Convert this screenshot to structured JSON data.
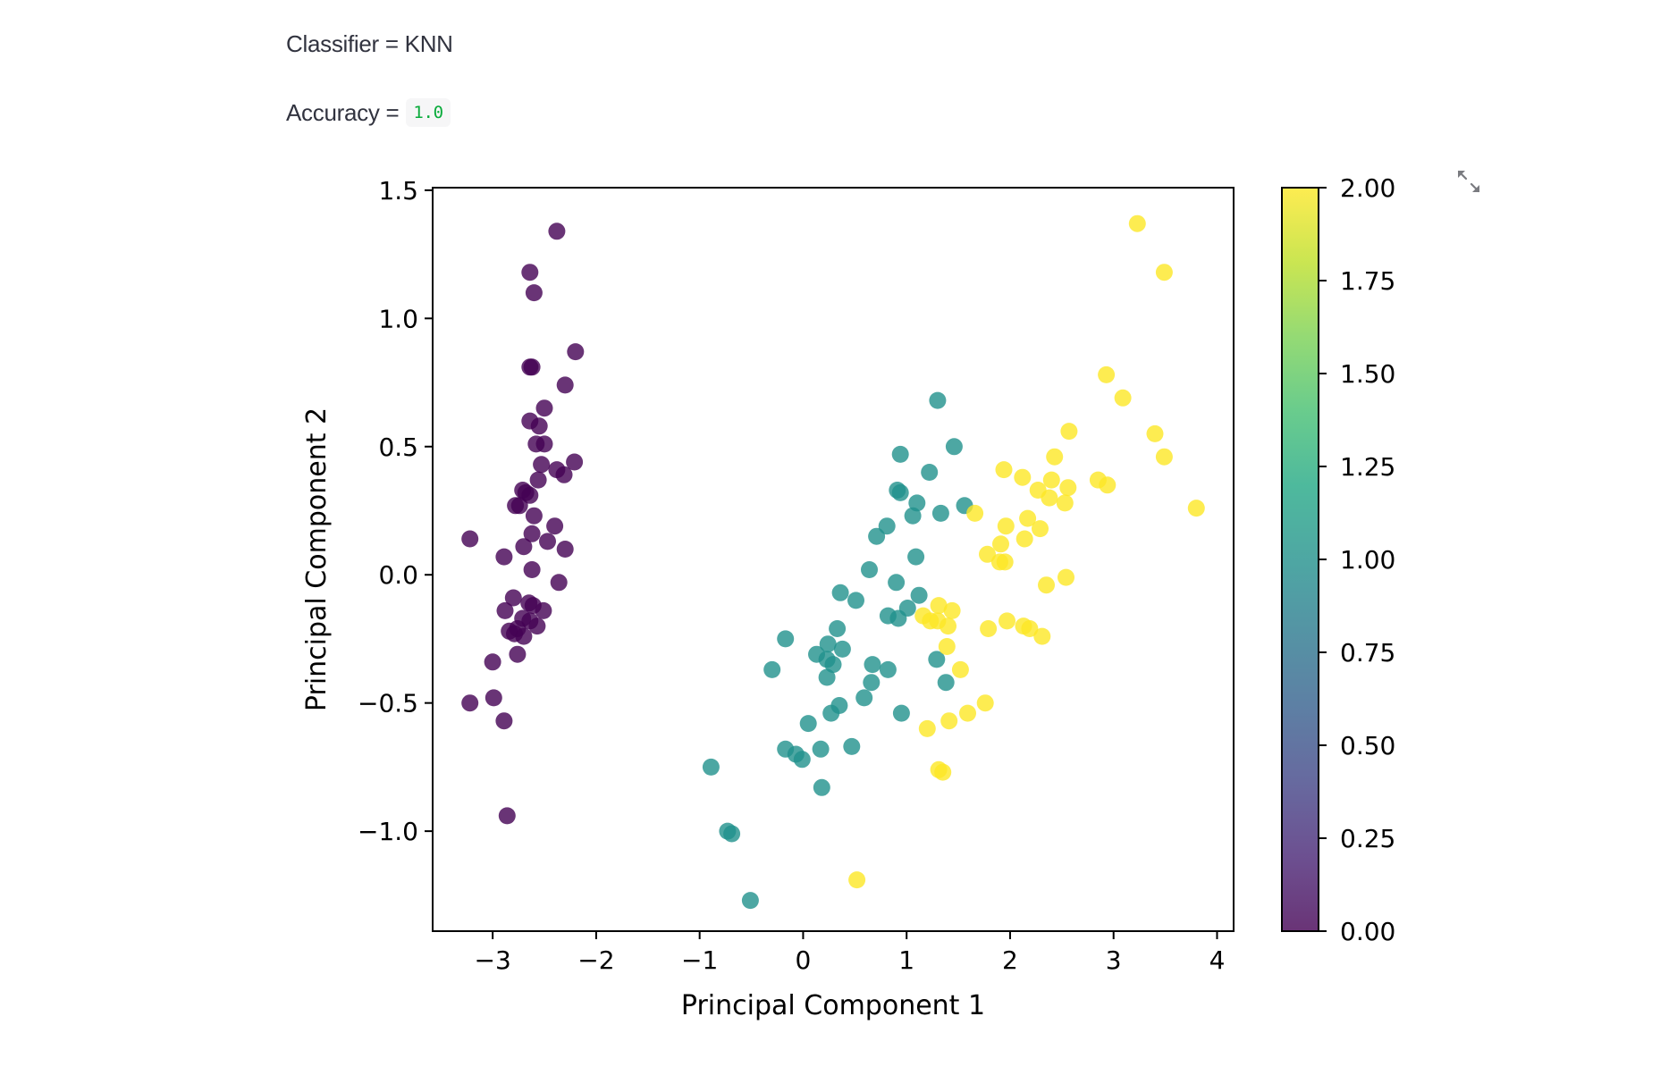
{
  "classifier": {
    "label": "Classifier =",
    "value": "KNN"
  },
  "accuracy": {
    "label": "Accuracy =",
    "value": "1.0"
  },
  "toolbar": {
    "expand_icon": "fullscreen-expand-icon"
  },
  "chart_data": {
    "type": "scatter",
    "title": "",
    "xlabel": "Principal Component 1",
    "ylabel": "Principal Component 2",
    "xlim": [
      -3.58,
      4.16
    ],
    "ylim": [
      -1.39,
      1.51
    ],
    "xticks": [
      -3,
      -2,
      -1,
      0,
      1,
      2,
      3,
      4
    ],
    "xtick_labels": [
      "−3",
      "−2",
      "−1",
      "0",
      "1",
      "2",
      "3",
      "4"
    ],
    "yticks": [
      -1.0,
      -0.5,
      0.0,
      0.5,
      1.0,
      1.5
    ],
    "ytick_labels": [
      "−1.0",
      "−0.5",
      "0.0",
      "0.5",
      "1.0",
      "1.5"
    ],
    "grid": false,
    "colormap": "viridis",
    "colors": {
      "class0": "#440154",
      "class1": "#21918c",
      "class2": "#fde725"
    },
    "point_alpha": 0.8,
    "colorbar": {
      "min": 0.0,
      "max": 2.0,
      "ticks": [
        0.0,
        0.25,
        0.5,
        0.75,
        1.0,
        1.25,
        1.5,
        1.75,
        2.0
      ],
      "tick_labels": [
        "0.00",
        "0.25",
        "0.50",
        "0.75",
        "1.00",
        "1.25",
        "1.50",
        "1.75",
        "2.00"
      ],
      "stops": [
        "#440154",
        "#482475",
        "#414487",
        "#355f8d",
        "#2a788e",
        "#21918c",
        "#22a884",
        "#44bf70",
        "#7ad151",
        "#bddf26",
        "#fde725"
      ]
    },
    "series": [
      {
        "name": "0",
        "points": [
          [
            -2.38,
            1.34
          ],
          [
            -2.64,
            1.18
          ],
          [
            -2.6,
            1.1
          ],
          [
            -2.2,
            0.87
          ],
          [
            -2.64,
            0.81
          ],
          [
            -2.62,
            0.81
          ],
          [
            -2.3,
            0.74
          ],
          [
            -2.5,
            0.65
          ],
          [
            -2.64,
            0.6
          ],
          [
            -2.55,
            0.58
          ],
          [
            -2.58,
            0.51
          ],
          [
            -2.5,
            0.51
          ],
          [
            -2.21,
            0.44
          ],
          [
            -2.53,
            0.43
          ],
          [
            -2.38,
            0.41
          ],
          [
            -2.31,
            0.39
          ],
          [
            -2.56,
            0.37
          ],
          [
            -2.71,
            0.33
          ],
          [
            -2.68,
            0.32
          ],
          [
            -2.64,
            0.31
          ],
          [
            -2.78,
            0.27
          ],
          [
            -2.74,
            0.27
          ],
          [
            -2.6,
            0.23
          ],
          [
            -2.4,
            0.19
          ],
          [
            -2.62,
            0.16
          ],
          [
            -2.47,
            0.13
          ],
          [
            -3.22,
            0.14
          ],
          [
            -2.7,
            0.11
          ],
          [
            -2.3,
            0.1
          ],
          [
            -2.89,
            0.07
          ],
          [
            -2.62,
            0.02
          ],
          [
            -2.36,
            -0.03
          ],
          [
            -2.8,
            -0.09
          ],
          [
            -2.65,
            -0.11
          ],
          [
            -2.61,
            -0.12
          ],
          [
            -2.51,
            -0.14
          ],
          [
            -2.88,
            -0.14
          ],
          [
            -2.71,
            -0.17
          ],
          [
            -2.64,
            -0.18
          ],
          [
            -2.57,
            -0.2
          ],
          [
            -2.76,
            -0.21
          ],
          [
            -2.84,
            -0.22
          ],
          [
            -2.79,
            -0.23
          ],
          [
            -2.7,
            -0.24
          ],
          [
            -2.76,
            -0.31
          ],
          [
            -3.0,
            -0.34
          ],
          [
            -2.99,
            -0.48
          ],
          [
            -3.22,
            -0.5
          ],
          [
            -2.89,
            -0.57
          ],
          [
            -2.86,
            -0.94
          ]
        ]
      },
      {
        "name": "1",
        "points": [
          [
            1.3,
            0.68
          ],
          [
            1.46,
            0.5
          ],
          [
            0.94,
            0.47
          ],
          [
            1.22,
            0.4
          ],
          [
            0.91,
            0.33
          ],
          [
            0.94,
            0.32
          ],
          [
            1.1,
            0.28
          ],
          [
            1.56,
            0.27
          ],
          [
            1.33,
            0.24
          ],
          [
            1.06,
            0.23
          ],
          [
            0.81,
            0.19
          ],
          [
            0.71,
            0.15
          ],
          [
            1.09,
            0.07
          ],
          [
            0.64,
            0.02
          ],
          [
            0.9,
            -0.03
          ],
          [
            0.36,
            -0.07
          ],
          [
            1.12,
            -0.08
          ],
          [
            0.51,
            -0.1
          ],
          [
            1.01,
            -0.13
          ],
          [
            0.82,
            -0.16
          ],
          [
            0.92,
            -0.17
          ],
          [
            0.33,
            -0.21
          ],
          [
            0.24,
            -0.27
          ],
          [
            -0.17,
            -0.25
          ],
          [
            0.38,
            -0.29
          ],
          [
            0.13,
            -0.31
          ],
          [
            0.23,
            -0.33
          ],
          [
            0.29,
            -0.35
          ],
          [
            0.67,
            -0.35
          ],
          [
            1.29,
            -0.33
          ],
          [
            -0.3,
            -0.37
          ],
          [
            0.82,
            -0.37
          ],
          [
            0.23,
            -0.4
          ],
          [
            0.66,
            -0.42
          ],
          [
            1.38,
            -0.42
          ],
          [
            0.59,
            -0.48
          ],
          [
            0.35,
            -0.51
          ],
          [
            0.27,
            -0.54
          ],
          [
            0.95,
            -0.54
          ],
          [
            0.05,
            -0.58
          ],
          [
            -0.17,
            -0.68
          ],
          [
            0.17,
            -0.68
          ],
          [
            0.47,
            -0.67
          ],
          [
            -0.07,
            -0.7
          ],
          [
            -0.01,
            -0.72
          ],
          [
            0.18,
            -0.83
          ],
          [
            -0.89,
            -0.75
          ],
          [
            -0.73,
            -1.0
          ],
          [
            -0.69,
            -1.01
          ],
          [
            -0.51,
            -1.27
          ]
        ]
      },
      {
        "name": "2",
        "points": [
          [
            3.23,
            1.37
          ],
          [
            3.49,
            1.18
          ],
          [
            2.93,
            0.78
          ],
          [
            3.09,
            0.69
          ],
          [
            2.57,
            0.56
          ],
          [
            3.4,
            0.55
          ],
          [
            2.43,
            0.46
          ],
          [
            3.49,
            0.46
          ],
          [
            1.94,
            0.41
          ],
          [
            2.12,
            0.38
          ],
          [
            2.4,
            0.37
          ],
          [
            2.85,
            0.37
          ],
          [
            2.94,
            0.35
          ],
          [
            2.27,
            0.33
          ],
          [
            2.56,
            0.34
          ],
          [
            2.38,
            0.3
          ],
          [
            2.53,
            0.28
          ],
          [
            3.8,
            0.26
          ],
          [
            1.66,
            0.24
          ],
          [
            2.17,
            0.22
          ],
          [
            1.96,
            0.19
          ],
          [
            2.29,
            0.18
          ],
          [
            2.14,
            0.14
          ],
          [
            1.91,
            0.12
          ],
          [
            1.78,
            0.08
          ],
          [
            1.95,
            0.05
          ],
          [
            1.9,
            0.05
          ],
          [
            2.54,
            -0.01
          ],
          [
            2.35,
            -0.04
          ],
          [
            1.31,
            -0.12
          ],
          [
            1.44,
            -0.14
          ],
          [
            1.16,
            -0.16
          ],
          [
            1.3,
            -0.18
          ],
          [
            1.4,
            -0.2
          ],
          [
            1.23,
            -0.18
          ],
          [
            1.97,
            -0.18
          ],
          [
            1.79,
            -0.21
          ],
          [
            2.13,
            -0.2
          ],
          [
            2.19,
            -0.21
          ],
          [
            2.31,
            -0.24
          ],
          [
            1.39,
            -0.28
          ],
          [
            1.52,
            -0.37
          ],
          [
            1.76,
            -0.5
          ],
          [
            1.59,
            -0.54
          ],
          [
            1.41,
            -0.57
          ],
          [
            1.2,
            -0.6
          ],
          [
            1.31,
            -0.76
          ],
          [
            1.35,
            -0.77
          ],
          [
            0.52,
            -1.19
          ]
        ]
      }
    ]
  }
}
